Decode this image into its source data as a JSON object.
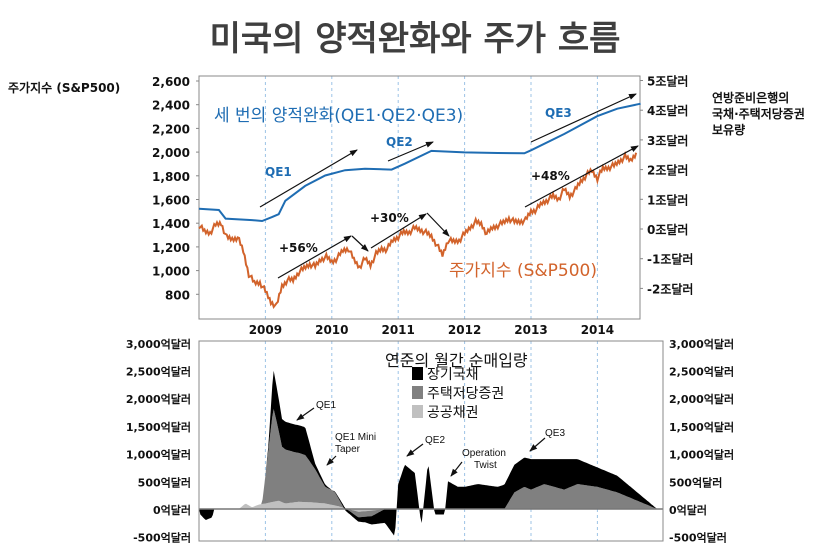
{
  "title": "미국의 양적완화와 주가 흐름",
  "chart_data": [
    {
      "type": "line",
      "left_axis_label": "주가지수 (S&P500)",
      "right_axis_label": [
        "연방준비은행의",
        "국채·주택저당증권",
        "보유량"
      ],
      "yticks_left": [
        "2,600",
        "2,400",
        "2,200",
        "2,000",
        "1,800",
        "1,600",
        "1,400",
        "1,200",
        "1,000",
        "800"
      ],
      "yticks_left_values": [
        2600,
        2400,
        2200,
        2000,
        1800,
        1600,
        1400,
        1200,
        1000,
        800
      ],
      "yticks_right": [
        "5조달러",
        "4조달러",
        "3조달러",
        "2조달러",
        "1조달러",
        "0조달러",
        "-1조달러",
        "-2조달러"
      ],
      "yticks_right_values": [
        5,
        4,
        3,
        2,
        1,
        0,
        -1,
        -2
      ],
      "xticks": [
        "2009",
        "2010",
        "2011",
        "2012",
        "2013",
        "2014"
      ],
      "xlim": [
        2008.0,
        2014.65
      ],
      "ylim_left": [
        660,
        2600
      ],
      "ylim_right": [
        -2.5,
        5
      ],
      "grid": "vertical dashed at years",
      "labels": {
        "fed_title": "세 번의 양적완화(QE1·QE2·QE3)",
        "sp_title": "주가지수 (S&P500)",
        "qe1": "QE1",
        "qe2": "QE2",
        "qe3": "QE3",
        "gain1": "+56%",
        "gain2": "+30%",
        "gain3": "+48%"
      },
      "series": [
        {
          "name": "연방준비은행 보유량 (조달러, right axis)",
          "color": "#1f6db3",
          "points": [
            [
              2008.0,
              0.68
            ],
            [
              2008.3,
              0.64
            ],
            [
              2008.4,
              0.35
            ],
            [
              2008.8,
              0.3
            ],
            [
              2008.95,
              0.27
            ],
            [
              2009.1,
              0.4
            ],
            [
              2009.2,
              0.5
            ],
            [
              2009.3,
              0.95
            ],
            [
              2009.6,
              1.45
            ],
            [
              2009.9,
              1.8
            ],
            [
              2010.2,
              1.98
            ],
            [
              2010.5,
              2.03
            ],
            [
              2010.9,
              2.0
            ],
            [
              2011.1,
              2.2
            ],
            [
              2011.5,
              2.63
            ],
            [
              2012.0,
              2.58
            ],
            [
              2012.5,
              2.56
            ],
            [
              2012.9,
              2.55
            ],
            [
              2013.0,
              2.65
            ],
            [
              2013.5,
              3.2
            ],
            [
              2014.0,
              3.8
            ],
            [
              2014.3,
              4.05
            ],
            [
              2014.65,
              4.22
            ]
          ]
        },
        {
          "name": "S&P500",
          "color": "#d2632b",
          "start": 2008.0,
          "step_months": 1,
          "values": [
            1380,
            1330,
            1320,
            1385,
            1400,
            1280,
            1265,
            1280,
            1165,
            970,
            895,
            900,
            825,
            735,
            700,
            870,
            920,
            920,
            985,
            1020,
            1055,
            1035,
            1095,
            1115,
            1075,
            1105,
            1170,
            1185,
            1090,
            1030,
            1100,
            1050,
            1140,
            1185,
            1180,
            1255,
            1285,
            1325,
            1325,
            1360,
            1345,
            1320,
            1290,
            1215,
            1130,
            1255,
            1245,
            1255,
            1310,
            1365,
            1410,
            1395,
            1310,
            1360,
            1380,
            1405,
            1440,
            1410,
            1415,
            1425,
            1500,
            1515,
            1570,
            1595,
            1630,
            1605,
            1685,
            1630,
            1680,
            1755,
            1805,
            1845,
            1780,
            1860,
            1870,
            1885,
            1925,
            1960,
            1930,
            1995
          ]
        }
      ]
    },
    {
      "type": "area",
      "title": "연준의 월간 순매입량",
      "yticks": [
        "3,000억달러",
        "2,500억달러",
        "2,000억달러",
        "1,500억달러",
        "1,000억달러",
        "500억달러",
        "0억달러",
        "-500억달러"
      ],
      "ytick_values": [
        3000,
        2500,
        2000,
        1500,
        1000,
        500,
        0,
        -500
      ],
      "ylim": [
        -500,
        3000
      ],
      "xlim": [
        2008.0,
        2015.0
      ],
      "stacked": true,
      "annotations": {
        "qe1": "QE1",
        "mini1": "QE1 Mini",
        "mini2": "Taper",
        "qe2": "QE2",
        "op1": "Operation",
        "op2": "Twist",
        "qe3": "QE3"
      },
      "series": [
        {
          "name": "공공채권",
          "color": "#c0c0c0",
          "points": [
            [
              2008,
              0
            ],
            [
              2008.6,
              0
            ],
            [
              2008.7,
              100
            ],
            [
              2008.8,
              30
            ],
            [
              2008.9,
              80
            ],
            [
              2009.0,
              100
            ],
            [
              2009.2,
              150
            ],
            [
              2009.3,
              100
            ],
            [
              2009.5,
              130
            ],
            [
              2009.7,
              120
            ],
            [
              2009.9,
              100
            ],
            [
              2010.1,
              50
            ],
            [
              2010.25,
              0
            ],
            [
              2010.4,
              -50
            ],
            [
              2010.6,
              -30
            ],
            [
              2010.8,
              0
            ],
            [
              2014.9,
              0
            ]
          ]
        },
        {
          "name": "주택저당증권",
          "color": "#808080",
          "points": [
            [
              2008,
              0
            ],
            [
              2008.95,
              0
            ],
            [
              2009.05,
              1000
            ],
            [
              2009.12,
              1700
            ],
            [
              2009.25,
              1000
            ],
            [
              2009.45,
              900
            ],
            [
              2009.6,
              850
            ],
            [
              2009.75,
              600
            ],
            [
              2009.9,
              300
            ],
            [
              2010.05,
              250
            ],
            [
              2010.2,
              0
            ],
            [
              2010.4,
              -100
            ],
            [
              2010.6,
              -100
            ],
            [
              2010.8,
              0
            ],
            [
              2012.6,
              0
            ],
            [
              2012.75,
              300
            ],
            [
              2012.9,
              400
            ],
            [
              2013.0,
              350
            ],
            [
              2013.2,
              450
            ],
            [
              2013.5,
              350
            ],
            [
              2013.7,
              450
            ],
            [
              2014.0,
              400
            ],
            [
              2014.3,
              300
            ],
            [
              2014.6,
              150
            ],
            [
              2014.9,
              0
            ]
          ]
        },
        {
          "name": "장기국채",
          "color": "#000000",
          "points": [
            [
              2008,
              0
            ],
            [
              2008.02,
              -100
            ],
            [
              2008.1,
              -200
            ],
            [
              2008.2,
              -150
            ],
            [
              2008.23,
              0
            ],
            [
              2009.0,
              0
            ],
            [
              2009.05,
              100
            ],
            [
              2009.12,
              700
            ],
            [
              2009.25,
              500
            ],
            [
              2009.45,
              500
            ],
            [
              2009.6,
              500
            ],
            [
              2009.75,
              100
            ],
            [
              2010.0,
              0
            ],
            [
              2010.5,
              -100
            ],
            [
              2010.8,
              -250
            ],
            [
              2010.95,
              -500
            ],
            [
              2011.0,
              450
            ],
            [
              2011.1,
              800
            ],
            [
              2011.25,
              650
            ],
            [
              2011.35,
              -300
            ],
            [
              2011.45,
              850
            ],
            [
              2011.55,
              -100
            ],
            [
              2011.7,
              -100
            ],
            [
              2011.75,
              500
            ],
            [
              2011.9,
              400
            ],
            [
              2012.0,
              400
            ],
            [
              2012.2,
              450
            ],
            [
              2012.5,
              400
            ],
            [
              2012.75,
              500
            ],
            [
              2013.0,
              550
            ],
            [
              2013.2,
              450
            ],
            [
              2013.5,
              550
            ],
            [
              2013.7,
              450
            ],
            [
              2014.0,
              350
            ],
            [
              2014.3,
              300
            ],
            [
              2014.6,
              150
            ],
            [
              2014.9,
              0
            ]
          ]
        }
      ]
    }
  ]
}
